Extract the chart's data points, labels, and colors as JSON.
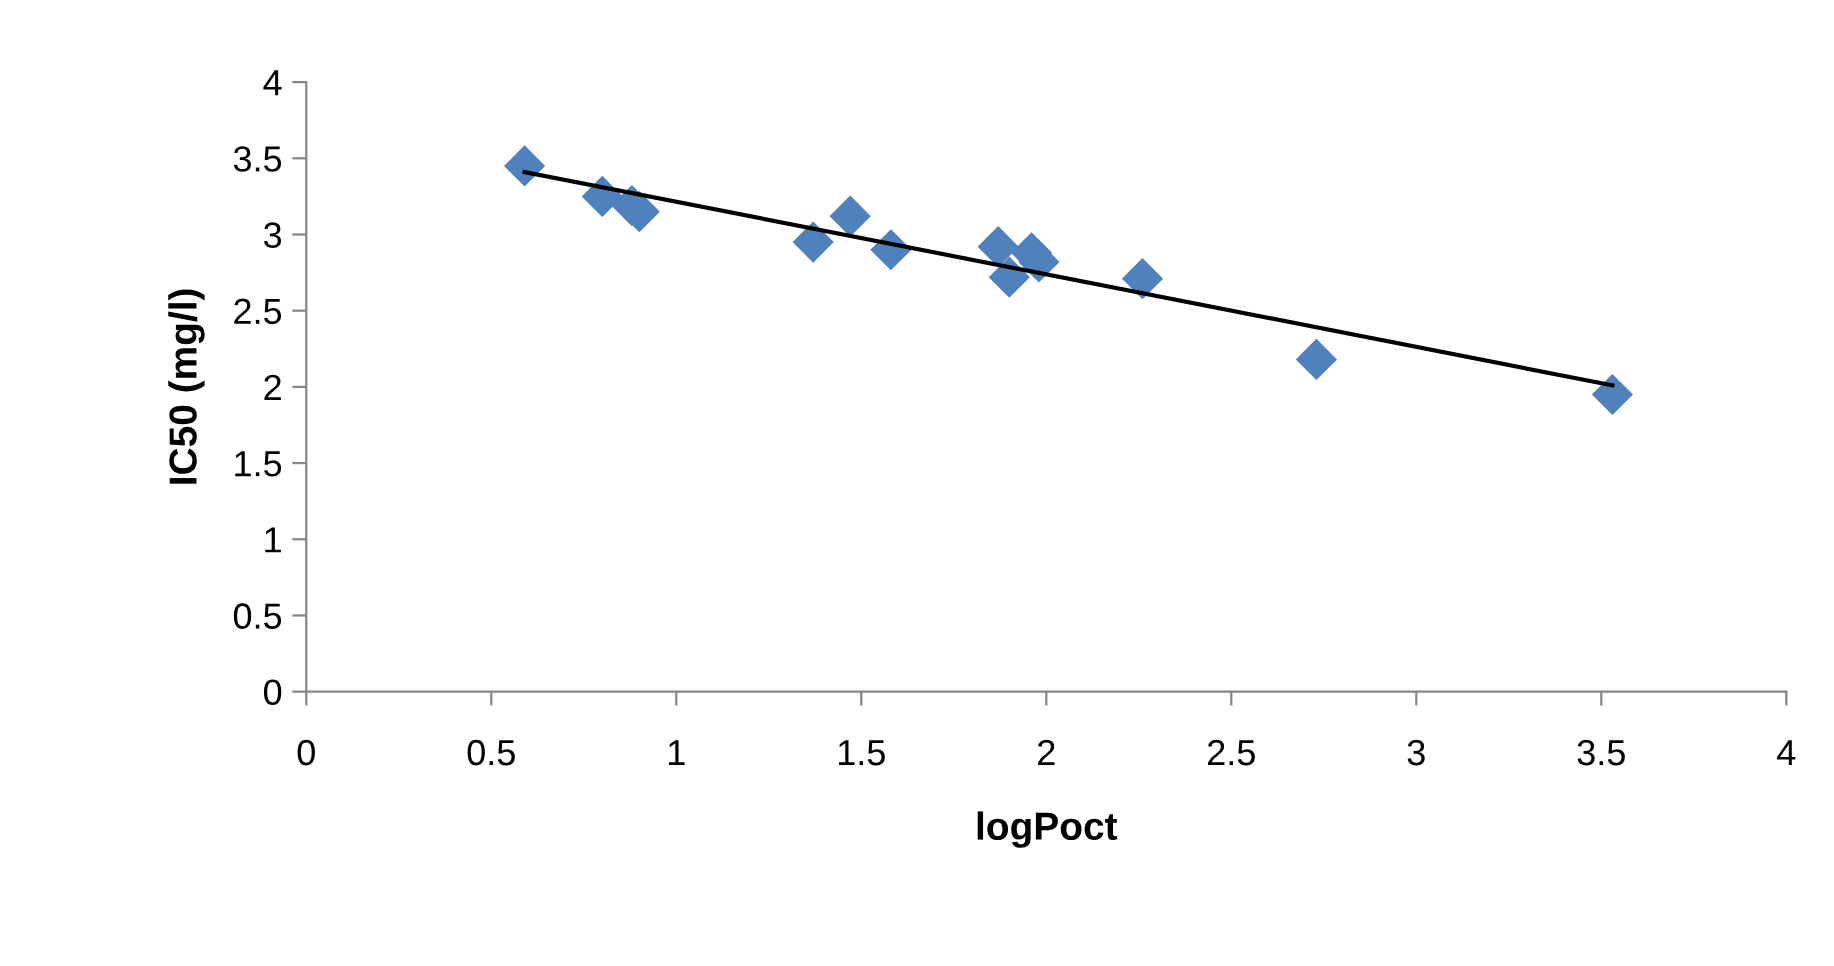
{
  "chart_data": {
    "type": "scatter",
    "xlabel": "logPoct",
    "ylabel": "IC50 (mg/l)",
    "xlim": [
      0,
      4
    ],
    "ylim": [
      0,
      4
    ],
    "xticks": [
      0,
      0.5,
      1,
      1.5,
      2,
      2.5,
      3,
      3.5,
      4
    ],
    "yticks": [
      0,
      0.5,
      1,
      1.5,
      2,
      2.5,
      3,
      3.5,
      4
    ],
    "grid": false,
    "legend": false,
    "marker": "diamond",
    "series": [
      {
        "color": "#4f81bd",
        "x": [
          0.59,
          0.8,
          0.88,
          0.9,
          1.37,
          1.47,
          1.58,
          1.87,
          1.9,
          1.96,
          1.98,
          2.26,
          2.73,
          3.53
        ],
        "values": [
          3.45,
          3.25,
          3.19,
          3.15,
          2.95,
          3.12,
          2.9,
          2.92,
          2.72,
          2.88,
          2.82,
          2.71,
          2.18,
          1.95
        ]
      },
      {
        "type": "line",
        "color": "#000000",
        "marker": "none",
        "line_style": "solid",
        "x": [
          0.59,
          3.53
        ],
        "values": [
          3.41,
          2.01
        ]
      }
    ]
  }
}
